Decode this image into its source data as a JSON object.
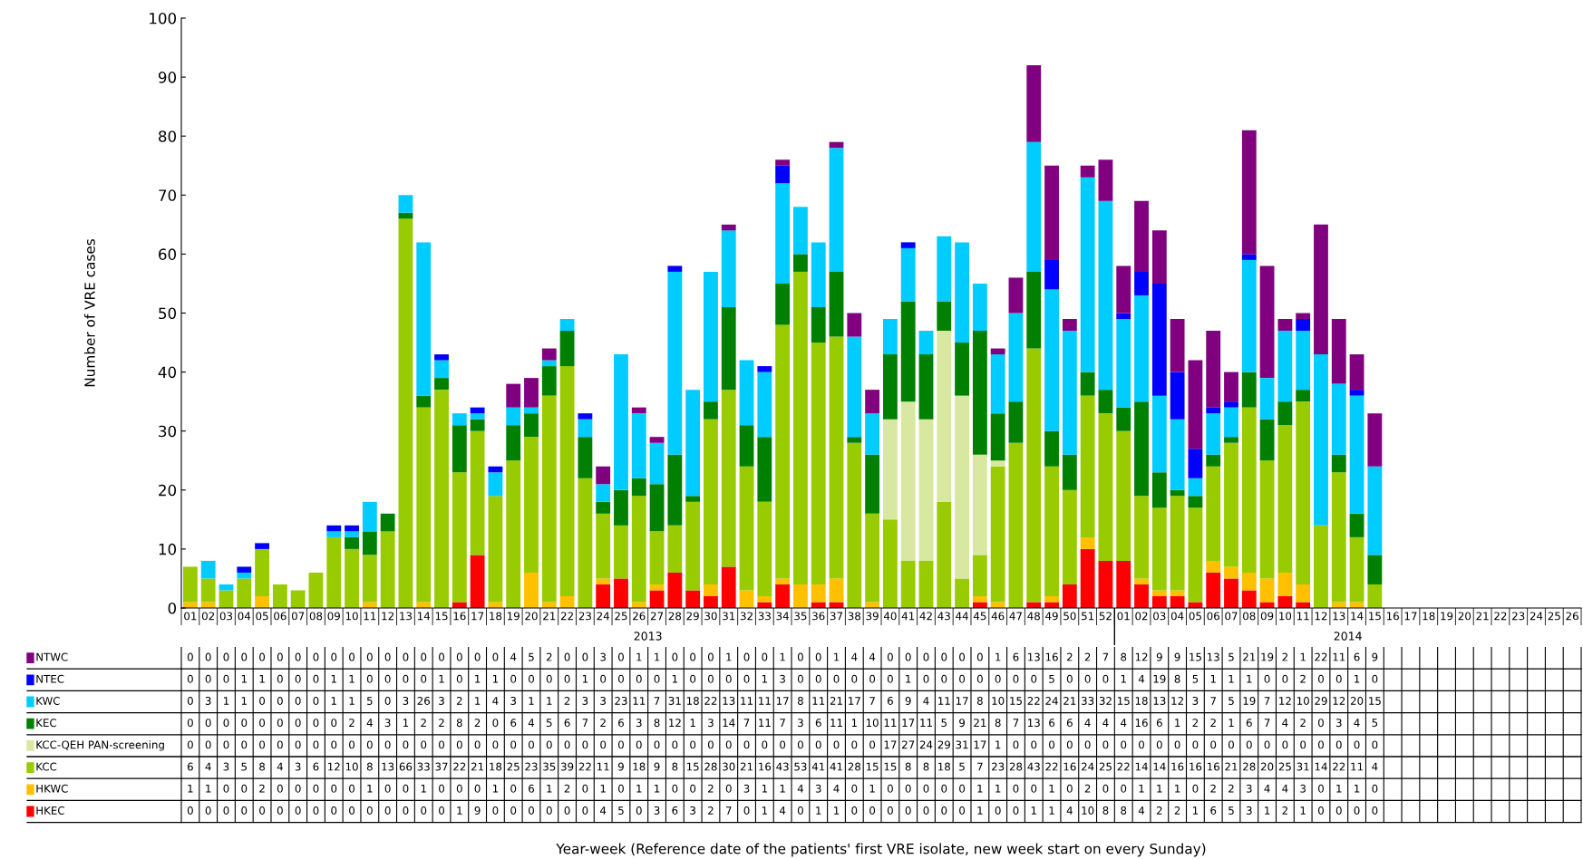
{
  "chart_data": {
    "type": "bar",
    "stacked": true,
    "data_labels": true,
    "legend": "bottom left",
    "ylabel": "Number of VRE cases",
    "annotations": [
      "2013",
      "2014",
      "Year-week (Reference date of the patients' first VRE isolate, new week start on every Sunday)"
    ],
    "ylim": [
      0,
      100
    ],
    "yticks": [
      0,
      10,
      20,
      30,
      40,
      50,
      60,
      70,
      80,
      90,
      100
    ],
    "grid": false,
    "categories": [
      "01",
      "02",
      "03",
      "04",
      "05",
      "06",
      "07",
      "08",
      "09",
      "10",
      "11",
      "12",
      "13",
      "14",
      "15",
      "16",
      "17",
      "18",
      "19",
      "20",
      "21",
      "22",
      "23",
      "24",
      "25",
      "26",
      "27",
      "28",
      "29",
      "30",
      "31",
      "32",
      "33",
      "34",
      "35",
      "36",
      "37",
      "38",
      "39",
      "40",
      "41",
      "42",
      "43",
      "44",
      "45",
      "46",
      "47",
      "48",
      "49",
      "50",
      "51",
      "52",
      "01",
      "02",
      "03",
      "04",
      "05",
      "06",
      "07",
      "08",
      "09",
      "10",
      "11",
      "12",
      "13",
      "14",
      "15",
      "16",
      "17",
      "18",
      "19",
      "20",
      "21",
      "22",
      "23",
      "24",
      "25",
      "26"
    ],
    "series": [
      {
        "name": "HKEC",
        "color": "#ff0000",
        "values": [
          0,
          0,
          0,
          0,
          0,
          0,
          0,
          0,
          0,
          0,
          0,
          0,
          0,
          0,
          0,
          1,
          9,
          0,
          0,
          0,
          0,
          0,
          0,
          4,
          5,
          0,
          3,
          6,
          3,
          2,
          7,
          0,
          1,
          4,
          0,
          1,
          1,
          0,
          0,
          0,
          0,
          0,
          0,
          0,
          1,
          0,
          0,
          1,
          1,
          4,
          10,
          8,
          8,
          4,
          2,
          2,
          1,
          6,
          5,
          3,
          1,
          2,
          1,
          0,
          0,
          0,
          0,
          null,
          null,
          null,
          null,
          null,
          null,
          null,
          null,
          null,
          null,
          null
        ]
      },
      {
        "name": "HKWC",
        "color": "#ffc000",
        "values": [
          1,
          1,
          0,
          0,
          2,
          0,
          0,
          0,
          0,
          0,
          1,
          0,
          0,
          1,
          0,
          0,
          0,
          1,
          0,
          6,
          1,
          2,
          0,
          1,
          0,
          1,
          1,
          0,
          0,
          2,
          0,
          3,
          1,
          1,
          4,
          3,
          4,
          0,
          1,
          0,
          0,
          0,
          0,
          0,
          1,
          1,
          0,
          0,
          1,
          0,
          2,
          0,
          0,
          1,
          1,
          1,
          0,
          2,
          2,
          3,
          4,
          4,
          3,
          0,
          1,
          1,
          0,
          null,
          null,
          null,
          null,
          null,
          null,
          null,
          null,
          null,
          null,
          null
        ]
      },
      {
        "name": "KCC",
        "color": "#99cc00",
        "values": [
          6,
          4,
          3,
          5,
          8,
          4,
          3,
          6,
          12,
          10,
          8,
          13,
          66,
          33,
          37,
          22,
          21,
          18,
          25,
          23,
          35,
          39,
          22,
          11,
          9,
          18,
          9,
          8,
          15,
          28,
          30,
          21,
          16,
          43,
          53,
          41,
          41,
          28,
          15,
          15,
          8,
          8,
          18,
          5,
          7,
          23,
          28,
          43,
          22,
          16,
          24,
          25,
          22,
          14,
          14,
          16,
          16,
          16,
          21,
          28,
          20,
          25,
          31,
          14,
          22,
          11,
          4,
          null,
          null,
          null,
          null,
          null,
          null,
          null,
          null,
          null,
          null,
          null
        ]
      },
      {
        "name": "KCC-QEH PAN-screening",
        "color": "#d8e8a0",
        "values": [
          0,
          0,
          0,
          0,
          0,
          0,
          0,
          0,
          0,
          0,
          0,
          0,
          0,
          0,
          0,
          0,
          0,
          0,
          0,
          0,
          0,
          0,
          0,
          0,
          0,
          0,
          0,
          0,
          0,
          0,
          0,
          0,
          0,
          0,
          0,
          0,
          0,
          0,
          0,
          17,
          27,
          24,
          29,
          31,
          17,
          1,
          0,
          0,
          0,
          0,
          0,
          0,
          0,
          0,
          0,
          0,
          0,
          0,
          0,
          0,
          0,
          0,
          0,
          0,
          0,
          0,
          0,
          null,
          null,
          null,
          null,
          null,
          null,
          null,
          null,
          null,
          null,
          null
        ]
      },
      {
        "name": "KEC",
        "color": "#008000",
        "values": [
          0,
          0,
          0,
          0,
          0,
          0,
          0,
          0,
          0,
          2,
          4,
          3,
          1,
          2,
          2,
          8,
          2,
          0,
          6,
          4,
          5,
          6,
          7,
          2,
          6,
          3,
          8,
          12,
          1,
          3,
          14,
          7,
          11,
          7,
          3,
          6,
          11,
          1,
          10,
          11,
          17,
          11,
          5,
          9,
          21,
          8,
          7,
          13,
          6,
          6,
          4,
          4,
          4,
          16,
          6,
          1,
          2,
          2,
          1,
          6,
          7,
          4,
          2,
          0,
          3,
          4,
          5,
          null,
          null,
          null,
          null,
          null,
          null,
          null,
          null,
          null,
          null,
          null
        ]
      },
      {
        "name": "KWC",
        "color": "#00ccff",
        "values": [
          0,
          3,
          1,
          1,
          0,
          0,
          0,
          0,
          1,
          1,
          5,
          0,
          3,
          26,
          3,
          2,
          1,
          4,
          3,
          1,
          1,
          2,
          3,
          3,
          23,
          11,
          7,
          31,
          18,
          22,
          13,
          11,
          11,
          17,
          8,
          11,
          21,
          17,
          7,
          6,
          9,
          4,
          11,
          17,
          8,
          10,
          15,
          22,
          24,
          21,
          33,
          32,
          15,
          18,
          13,
          12,
          3,
          7,
          5,
          19,
          7,
          12,
          10,
          29,
          12,
          20,
          15,
          null,
          null,
          null,
          null,
          null,
          null,
          null,
          null,
          null,
          null,
          null
        ]
      },
      {
        "name": "NTEC",
        "color": "#0000ff",
        "values": [
          0,
          0,
          0,
          1,
          1,
          0,
          0,
          0,
          1,
          1,
          0,
          0,
          0,
          0,
          1,
          0,
          1,
          1,
          0,
          0,
          0,
          0,
          1,
          0,
          0,
          0,
          0,
          1,
          0,
          0,
          0,
          0,
          1,
          3,
          0,
          0,
          0,
          0,
          0,
          0,
          1,
          0,
          0,
          0,
          0,
          0,
          0,
          0,
          5,
          0,
          0,
          0,
          1,
          4,
          19,
          8,
          5,
          1,
          1,
          1,
          0,
          0,
          2,
          0,
          0,
          1,
          0,
          null,
          null,
          null,
          null,
          null,
          null,
          null,
          null,
          null,
          null,
          null
        ]
      },
      {
        "name": "NTWC",
        "color": "#800080",
        "values": [
          0,
          0,
          0,
          0,
          0,
          0,
          0,
          0,
          0,
          0,
          0,
          0,
          0,
          0,
          0,
          0,
          0,
          0,
          4,
          5,
          2,
          0,
          0,
          3,
          0,
          1,
          1,
          0,
          0,
          0,
          1,
          0,
          0,
          1,
          0,
          0,
          1,
          4,
          4,
          0,
          0,
          0,
          0,
          0,
          0,
          1,
          6,
          13,
          16,
          2,
          2,
          7,
          8,
          12,
          9,
          9,
          15,
          13,
          5,
          21,
          19,
          2,
          1,
          22,
          11,
          6,
          9,
          null,
          null,
          null,
          null,
          null,
          null,
          null,
          null,
          null,
          null,
          null
        ]
      }
    ]
  }
}
